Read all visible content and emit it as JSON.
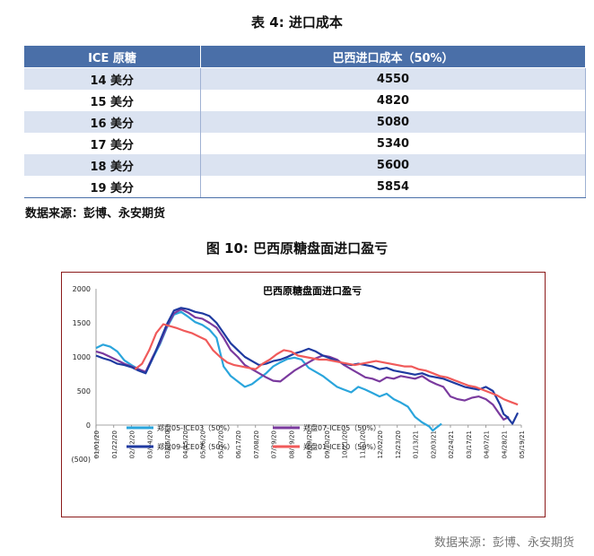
{
  "table": {
    "title": "表 4:  进口成本",
    "headers": [
      "ICE 原糖",
      "巴西进口成本（50%）"
    ],
    "rows": [
      [
        "14 美分",
        "4550"
      ],
      [
        "15 美分",
        "4820"
      ],
      [
        "16 美分",
        "5080"
      ],
      [
        "17 美分",
        "5340"
      ],
      [
        "18 美分",
        "5600"
      ],
      [
        "19 美分",
        "5854"
      ]
    ],
    "source": "数据来源：彭博、永安期货"
  },
  "figure": {
    "title": "图 10:  巴西原糖盘面进口盈亏",
    "source": "数据来源：彭博、永安期货"
  },
  "chart_data": {
    "type": "line",
    "title": "巴西原糖盘面进口盈亏",
    "ylim": [
      -500,
      2000
    ],
    "yticks": [
      2000,
      1500,
      1000,
      500,
      0,
      -500
    ],
    "ytick_labels": [
      "2000",
      "1500",
      "1000",
      "500",
      "0",
      "(500)"
    ],
    "xtick_labels": [
      "01/01/20",
      "01/22/20",
      "02/12/20",
      "03/04/20",
      "03/25/20",
      "04/15/20",
      "05/06/20",
      "05/27/20",
      "06/17/20",
      "07/08/20",
      "07/29/20",
      "08/19/20",
      "09/09/20",
      "09/30/20",
      "10/21/20",
      "11/11/20",
      "12/02/20",
      "12/23/20",
      "01/13/21",
      "02/03/21",
      "02/24/21",
      "03/17/21",
      "04/07/21",
      "04/28/21",
      "05/19/21"
    ],
    "legend_position": "bottom-left",
    "grid": false,
    "series": [
      {
        "name": "郑盘05-ICE03（50%）",
        "color": "#2aa5dc",
        "x": [
          0,
          0.4,
          0.8,
          1.2,
          1.6,
          2,
          2.4,
          2.8,
          3.2,
          3.6,
          4,
          4.4,
          4.8,
          5.2,
          5.6,
          6,
          6.4,
          6.8,
          7.2,
          7.6,
          8,
          8.4,
          8.8,
          9.2,
          9.6,
          10,
          10.4,
          10.8,
          11.2,
          11.6,
          12,
          12.4,
          12.8,
          13.2,
          13.6,
          14,
          14.4,
          14.8,
          15.2,
          15.6,
          16,
          16.4,
          16.8,
          17.2,
          17.6,
          18,
          18.4,
          18.8,
          19,
          19.2,
          19.5
        ],
        "y": [
          1130,
          1180,
          1150,
          1080,
          950,
          880,
          820,
          760,
          980,
          1180,
          1430,
          1620,
          1660,
          1590,
          1510,
          1470,
          1400,
          1280,
          860,
          720,
          640,
          560,
          600,
          680,
          760,
          860,
          920,
          970,
          990,
          960,
          840,
          780,
          720,
          640,
          560,
          520,
          480,
          560,
          520,
          470,
          420,
          460,
          380,
          330,
          270,
          120,
          40,
          -20,
          -80,
          -40,
          20
        ]
      },
      {
        "name": "郑盘07-ICE05（50%）",
        "color": "#7a3a9e",
        "x": [
          0,
          0.4,
          0.8,
          1.2,
          1.6,
          2,
          2.4,
          2.8,
          3.2,
          3.6,
          4,
          4.4,
          4.8,
          5.2,
          5.6,
          6,
          6.4,
          6.8,
          7.2,
          7.6,
          8,
          8.4,
          8.8,
          9.2,
          9.6,
          10,
          10.4,
          10.8,
          11.2,
          11.6,
          12,
          12.4,
          12.8,
          13.2,
          13.6,
          14,
          14.4,
          14.8,
          15.2,
          15.6,
          16,
          16.4,
          16.8,
          17.2,
          17.6,
          18,
          18.4,
          18.8,
          19.2,
          19.6,
          20,
          20.4,
          20.8,
          21.2,
          21.6,
          22,
          22.4,
          22.8,
          23,
          23.3
        ],
        "y": [
          1080,
          1050,
          1000,
          950,
          900,
          860,
          820,
          780,
          1000,
          1200,
          1450,
          1640,
          1700,
          1650,
          1580,
          1560,
          1500,
          1430,
          1280,
          1100,
          1000,
          880,
          820,
          760,
          700,
          650,
          640,
          720,
          800,
          860,
          920,
          980,
          1020,
          1000,
          960,
          880,
          820,
          760,
          700,
          680,
          640,
          700,
          680,
          720,
          700,
          680,
          720,
          650,
          600,
          560,
          420,
          380,
          360,
          400,
          420,
          380,
          300,
          150,
          80,
          120
        ]
      },
      {
        "name": "郑盘09-ICE07（50%）",
        "color": "#1f3aa0",
        "x": [
          0,
          0.4,
          0.8,
          1.2,
          1.6,
          2,
          2.4,
          2.8,
          3.2,
          3.6,
          4,
          4.4,
          4.8,
          5.2,
          5.6,
          6,
          6.4,
          6.8,
          7.2,
          7.6,
          8,
          8.4,
          8.8,
          9.2,
          9.6,
          10,
          10.4,
          10.8,
          11.2,
          11.6,
          12,
          12.4,
          12.8,
          13.2,
          13.6,
          14,
          14.4,
          14.8,
          15.2,
          15.6,
          16,
          16.4,
          16.8,
          17.2,
          17.6,
          18,
          18.4,
          18.8,
          19.2,
          19.6,
          20,
          20.4,
          20.8,
          21.2,
          21.6,
          22,
          22.4,
          22.8,
          23,
          23.2,
          23.5,
          23.8
        ],
        "y": [
          1020,
          980,
          950,
          900,
          880,
          850,
          800,
          760,
          980,
          1230,
          1480,
          1680,
          1720,
          1700,
          1660,
          1640,
          1600,
          1500,
          1350,
          1200,
          1100,
          1000,
          940,
          880,
          900,
          940,
          960,
          1000,
          1050,
          1080,
          1120,
          1080,
          1020,
          980,
          940,
          900,
          880,
          900,
          880,
          860,
          820,
          840,
          800,
          780,
          760,
          740,
          760,
          720,
          700,
          680,
          640,
          600,
          560,
          540,
          520,
          560,
          500,
          300,
          160,
          120,
          20,
          180
        ]
      },
      {
        "name": "郑盘01-ICE10（50%）",
        "color": "#f05a5a",
        "x": [
          2.2,
          2.6,
          3,
          3.4,
          3.8,
          4.2,
          4.6,
          5,
          5.4,
          5.8,
          6.2,
          6.6,
          7,
          7.4,
          7.8,
          8.2,
          8.6,
          9,
          9.4,
          9.8,
          10.2,
          10.6,
          11,
          11.4,
          11.8,
          12.2,
          12.6,
          13,
          13.4,
          13.8,
          14.2,
          14.6,
          15,
          15.4,
          15.8,
          16.2,
          16.6,
          17,
          17.4,
          17.8,
          18.2,
          18.6,
          19,
          19.4,
          19.8,
          20.2,
          20.6,
          21,
          21.4,
          21.8,
          22.2,
          22.6,
          23,
          23.4,
          23.8
        ],
        "y": [
          820,
          900,
          1100,
          1350,
          1480,
          1450,
          1420,
          1380,
          1350,
          1300,
          1250,
          1100,
          1000,
          920,
          880,
          860,
          840,
          820,
          900,
          960,
          1040,
          1100,
          1080,
          1020,
          1000,
          980,
          960,
          960,
          940,
          920,
          900,
          880,
          900,
          920,
          940,
          920,
          900,
          880,
          860,
          860,
          820,
          800,
          760,
          720,
          700,
          660,
          620,
          580,
          560,
          520,
          480,
          440,
          380,
          340,
          300
        ]
      }
    ]
  }
}
